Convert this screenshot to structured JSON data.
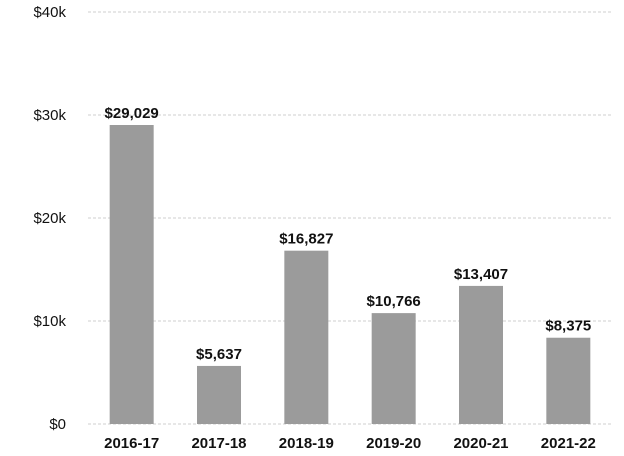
{
  "chart_data": {
    "type": "bar",
    "categories": [
      "2016-17",
      "2017-18",
      "2018-19",
      "2019-20",
      "2020-21",
      "2021-22"
    ],
    "values": [
      29029,
      5637,
      16827,
      10766,
      13407,
      8375
    ],
    "data_labels": [
      "$29,029",
      "$5,637",
      "$16,827",
      "$10,766",
      "$13,407",
      "$8,375"
    ],
    "yticks": [
      0,
      10000,
      20000,
      30000,
      40000
    ],
    "ytick_labels": [
      "$0",
      "$10k",
      "$20k",
      "$30k",
      "$40k"
    ],
    "ylim": [
      0,
      40000
    ],
    "grid": true,
    "colors": {
      "bar": "#9b9b9b",
      "grid": "#cfcfcf",
      "text": "#111111"
    }
  }
}
